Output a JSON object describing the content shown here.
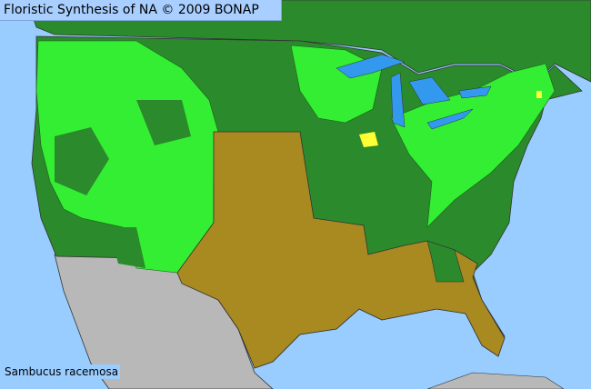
{
  "header": {
    "title": "Floristic Synthesis of NA © 2009 BONAP"
  },
  "map": {
    "species_label": "Sambucus racemosa",
    "colors": {
      "ocean": "#99ccff",
      "lakes": "#3399ee",
      "present_state": "#2b8a2b",
      "present_county": "#33ee33",
      "absent_state": "#a88a20",
      "rare": "#ffff33",
      "outside_region": "#b8b8b8",
      "borders": "#333333"
    }
  }
}
